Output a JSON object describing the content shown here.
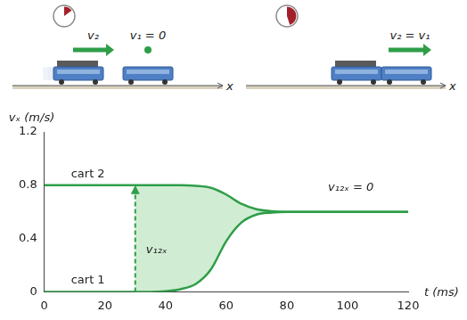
{
  "chart_data": {
    "type": "line",
    "x_label": "t (ms)",
    "y_label": "vₓ (m/s)",
    "x": [
      0,
      5,
      10,
      15,
      20,
      25,
      30,
      35,
      40,
      45,
      50,
      55,
      60,
      65,
      70,
      75,
      80,
      85,
      90,
      95,
      100,
      105,
      110,
      115,
      120
    ],
    "series": [
      {
        "name": "cart 2",
        "color": "#2e9e48",
        "values": [
          0.8,
          0.8,
          0.8,
          0.8,
          0.8,
          0.8,
          0.8,
          0.8,
          0.8,
          0.8,
          0.795,
          0.78,
          0.73,
          0.66,
          0.62,
          0.605,
          0.6,
          0.6,
          0.6,
          0.6,
          0.6,
          0.6,
          0.6,
          0.6,
          0.6
        ]
      },
      {
        "name": "cart 1",
        "color": "#2e9e48",
        "values": [
          0,
          0,
          0,
          0,
          0,
          0,
          0,
          0,
          0.005,
          0.02,
          0.06,
          0.17,
          0.38,
          0.52,
          0.58,
          0.595,
          0.6,
          0.6,
          0.6,
          0.6,
          0.6,
          0.6,
          0.6,
          0.6,
          0.6
        ]
      }
    ],
    "xlim": [
      0,
      120
    ],
    "ylim": [
      0,
      1.2
    ],
    "xticks": [
      0,
      20,
      40,
      60,
      80,
      100,
      120
    ],
    "yticks": [
      0,
      0.4,
      0.8,
      1.2
    ],
    "grid": false,
    "annotations": [
      {
        "text": "v₁₂ₓ",
        "arrow_x": 30,
        "arrow_y": [
          0,
          0.8
        ]
      },
      {
        "text": "v₁₂ₓ = 0"
      }
    ],
    "scene": {
      "before": [
        "v₂",
        "v₁ = 0"
      ],
      "after": [
        "v₂ = v₁"
      ],
      "axis_label": "x"
    }
  }
}
